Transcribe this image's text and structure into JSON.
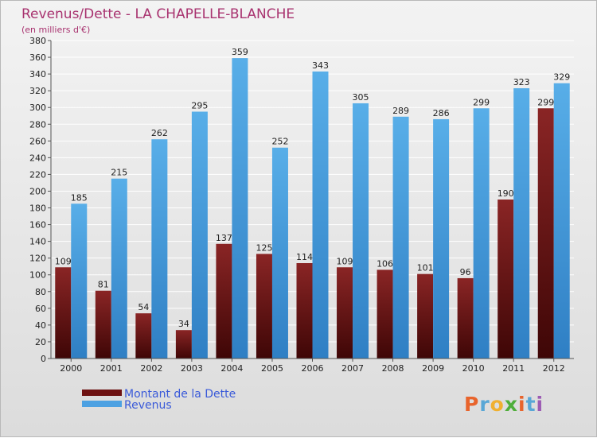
{
  "chart_data": {
    "type": "bar",
    "title": "Revenus/Dette - LA CHAPELLE-BLANCHE",
    "subtitle": "(en milliers d'€)",
    "categories": [
      "2000",
      "2001",
      "2002",
      "2003",
      "2004",
      "2005",
      "2006",
      "2007",
      "2008",
      "2009",
      "2010",
      "2011",
      "2012"
    ],
    "series": [
      {
        "name": "Montant de la Dette",
        "color": "#7a1b1b",
        "values": [
          109,
          81,
          54,
          34,
          137,
          125,
          114,
          109,
          106,
          101,
          96,
          190,
          299
        ]
      },
      {
        "name": "Revenus",
        "color": "#4da1e2",
        "values": [
          185,
          215,
          262,
          295,
          359,
          252,
          343,
          305,
          289,
          286,
          299,
          323,
          329
        ]
      }
    ],
    "ylim": [
      0,
      380
    ],
    "ytick_step": 20,
    "grid": true,
    "legend_position": "bottom-left"
  },
  "brand": {
    "name": "Proxiti",
    "colors": [
      "#e8642c",
      "#59a7d6",
      "#f0b030",
      "#4fae3a",
      "#e8642c",
      "#59a7d6",
      "#9c5bb3"
    ]
  }
}
